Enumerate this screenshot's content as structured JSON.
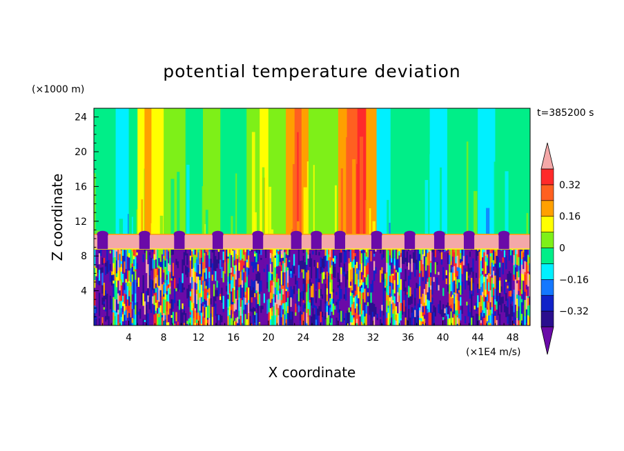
{
  "chart_data": {
    "type": "heatmap",
    "title": "potential temperature deviation",
    "xlabel": "X coordinate",
    "ylabel": "Z coordinate",
    "x_unit": "(×1E4 m/s)",
    "y_unit": "(×1000 m)",
    "time_label": "t=385200 s",
    "xlim": [
      0,
      50
    ],
    "ylim": [
      0,
      25
    ],
    "x_ticks": [
      4,
      8,
      12,
      16,
      20,
      24,
      28,
      32,
      36,
      40,
      44,
      48
    ],
    "y_ticks": [
      4,
      8,
      12,
      16,
      20,
      24
    ],
    "colorbar": {
      "levels": [
        -0.4,
        -0.32,
        -0.24,
        -0.16,
        -0.08,
        0,
        0.08,
        0.16,
        0.24,
        0.32,
        0.4
      ],
      "tick_labels": [
        "0.32",
        "0.16",
        "0",
        "−0.16",
        "−0.32"
      ],
      "tick_values": [
        0.32,
        0.16,
        0,
        -0.16,
        -0.32
      ],
      "colors": [
        "#6a0aa8",
        "#2a0e8e",
        "#1022c8",
        "#1478ff",
        "#00f0ff",
        "#00ee88",
        "#7ef018",
        "#ffff00",
        "#ffa000",
        "#ff6020",
        "#ff2a2a",
        "#f4a8a8"
      ]
    },
    "upper_band_columns": [
      {
        "x0": 0.0,
        "x1": 2.5,
        "level": 5
      },
      {
        "x0": 2.5,
        "x1": 4.0,
        "level": 4
      },
      {
        "x0": 4.0,
        "x1": 5.0,
        "level": 5
      },
      {
        "x0": 5.0,
        "x1": 5.8,
        "level": 7
      },
      {
        "x0": 5.8,
        "x1": 6.6,
        "level": 8
      },
      {
        "x0": 6.6,
        "x1": 8.0,
        "level": 7
      },
      {
        "x0": 8.0,
        "x1": 10.5,
        "level": 6
      },
      {
        "x0": 10.5,
        "x1": 12.5,
        "level": 5
      },
      {
        "x0": 12.5,
        "x1": 14.5,
        "level": 6
      },
      {
        "x0": 14.5,
        "x1": 17.5,
        "level": 5
      },
      {
        "x0": 17.5,
        "x1": 19.0,
        "level": 6
      },
      {
        "x0": 19.0,
        "x1": 20.0,
        "level": 7
      },
      {
        "x0": 20.0,
        "x1": 22.0,
        "level": 6
      },
      {
        "x0": 22.0,
        "x1": 23.0,
        "level": 8
      },
      {
        "x0": 23.0,
        "x1": 23.8,
        "level": 9
      },
      {
        "x0": 23.8,
        "x1": 24.6,
        "level": 8
      },
      {
        "x0": 24.6,
        "x1": 28.0,
        "level": 6
      },
      {
        "x0": 28.0,
        "x1": 29.0,
        "level": 8
      },
      {
        "x0": 29.0,
        "x1": 30.2,
        "level": 9
      },
      {
        "x0": 30.2,
        "x1": 31.2,
        "level": 10
      },
      {
        "x0": 31.2,
        "x1": 32.4,
        "level": 8
      },
      {
        "x0": 32.4,
        "x1": 34.0,
        "level": 4
      },
      {
        "x0": 34.0,
        "x1": 38.5,
        "level": 5
      },
      {
        "x0": 38.5,
        "x1": 40.5,
        "level": 4
      },
      {
        "x0": 40.5,
        "x1": 44.0,
        "level": 5
      },
      {
        "x0": 44.0,
        "x1": 46.0,
        "level": 4
      },
      {
        "x0": 46.0,
        "x1": 50.0,
        "level": 5
      }
    ],
    "inversion_layer": {
      "z0": 8.8,
      "z1": 10.5,
      "level": 11
    },
    "plume_centers_x": [
      1.0,
      5.8,
      9.8,
      14.2,
      18.8,
      23.2,
      25.5,
      28.2,
      32.4,
      36.2,
      39.6,
      43.0,
      47.0
    ],
    "lower_turbulent_layer": {
      "z0": 0.0,
      "z1": 8.8
    }
  }
}
